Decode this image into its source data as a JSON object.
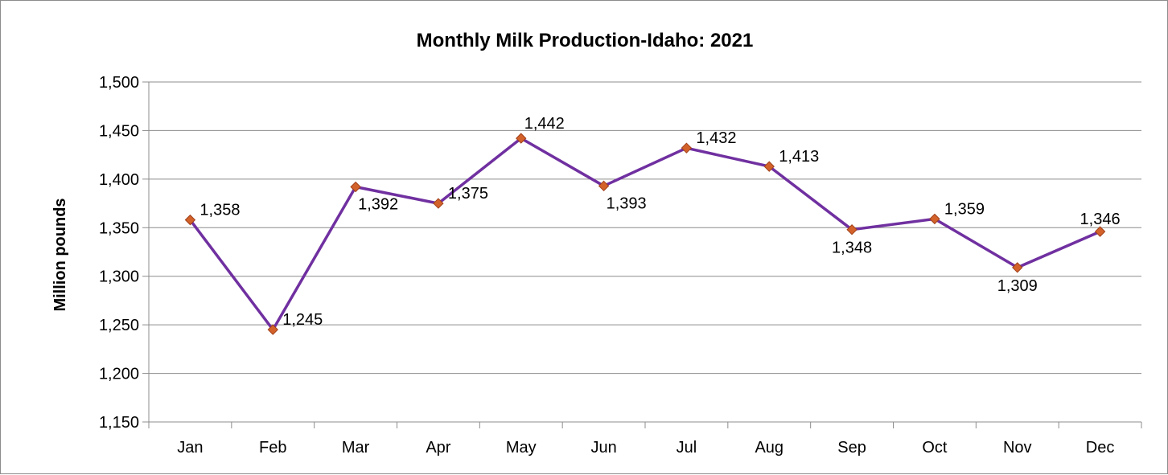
{
  "chart_data": {
    "type": "line",
    "title": "Monthly Milk Production-Idaho: 2021",
    "xlabel": "",
    "ylabel": "Million pounds",
    "categories": [
      "Jan",
      "Feb",
      "Mar",
      "Apr",
      "May",
      "Jun",
      "Jul",
      "Aug",
      "Sep",
      "Oct",
      "Nov",
      "Dec"
    ],
    "series": [
      {
        "values": [
          1358,
          1245,
          1392,
          1375,
          1442,
          1393,
          1432,
          1413,
          1348,
          1359,
          1309,
          1346
        ],
        "labels": [
          "1,358",
          "1,245",
          "1,392",
          "1,375",
          "1,442",
          "1,393",
          "1,432",
          "1,413",
          "1,348",
          "1,359",
          "1,309",
          "1,346"
        ],
        "line_color": "#7030a0",
        "marker_color": "#d3622a",
        "marker": "diamond"
      }
    ],
    "ylim": [
      1150,
      1500
    ],
    "ytick_values": [
      1150,
      1200,
      1250,
      1300,
      1350,
      1400,
      1450,
      1500
    ],
    "ytick_labels": [
      "1,150",
      "1,200",
      "1,250",
      "1,300",
      "1,350",
      "1,400",
      "1,450",
      "1,500"
    ],
    "grid": true,
    "legend": "none"
  }
}
